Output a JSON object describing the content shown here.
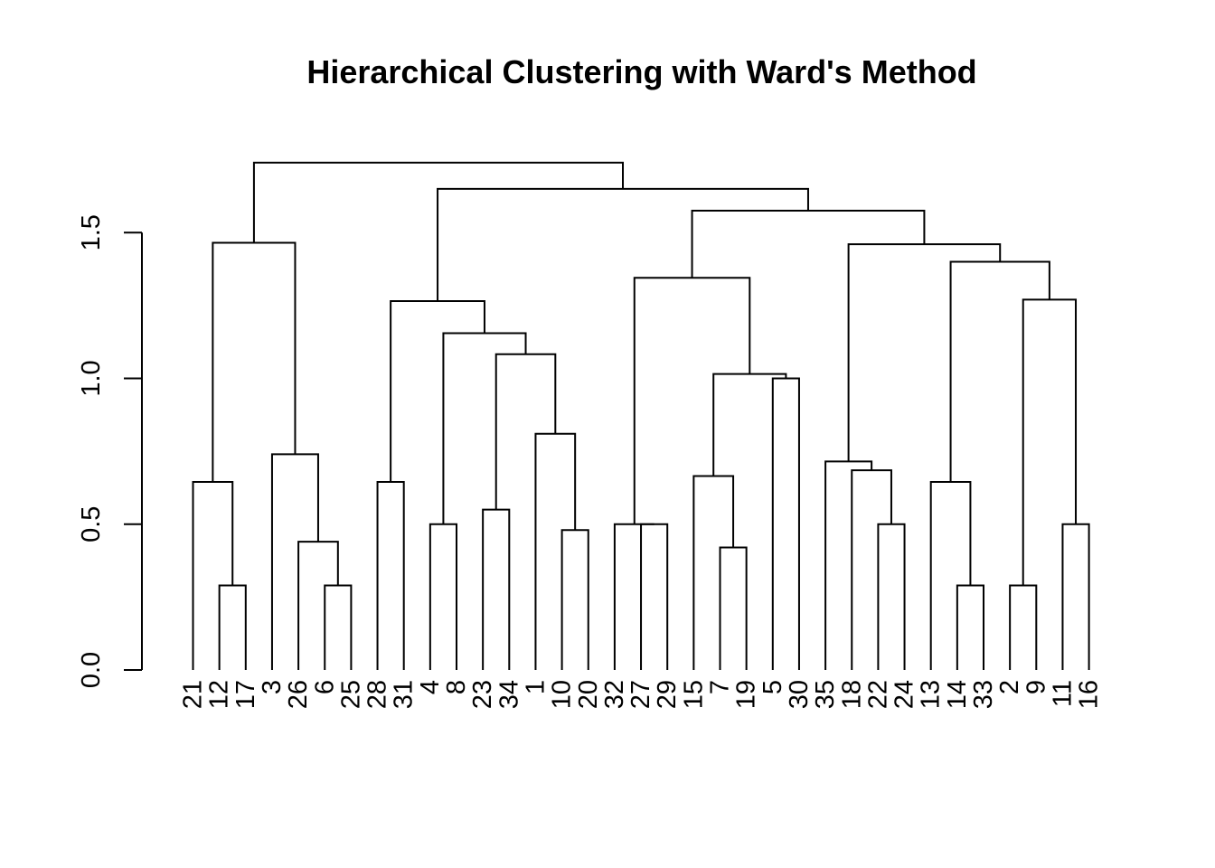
{
  "chart_data": {
    "type": "dendrogram",
    "title": "Hierarchical Clustering with Ward's Method",
    "xlabel": "",
    "ylabel": "",
    "ylim": [
      0,
      1.75
    ],
    "yticks": [
      "0.0",
      "0.5",
      "1.0",
      "1.5"
    ],
    "ytick_values": [
      0.0,
      0.5,
      1.0,
      1.5
    ],
    "leaves": [
      "21",
      "12",
      "17",
      "3",
      "26",
      "6",
      "25",
      "28",
      "31",
      "4",
      "8",
      "23",
      "34",
      "1",
      "10",
      "20",
      "32",
      "27",
      "29",
      "15",
      "7",
      "19",
      "5",
      "30",
      "35",
      "18",
      "22",
      "24",
      "13",
      "14",
      "33",
      "2",
      "9",
      "11",
      "16"
    ],
    "merges": [
      {
        "id": "m1",
        "left": "12",
        "right": "17",
        "height": 0.29
      },
      {
        "id": "m2",
        "left": "21",
        "right": "m1",
        "height": 0.645
      },
      {
        "id": "m3",
        "left": "6",
        "right": "25",
        "height": 0.29
      },
      {
        "id": "m4",
        "left": "26",
        "right": "m3",
        "height": 0.44
      },
      {
        "id": "m5",
        "left": "3",
        "right": "m4",
        "height": 0.74
      },
      {
        "id": "m6",
        "left": "m2",
        "right": "m5",
        "height": 1.465
      },
      {
        "id": "m7",
        "left": "28",
        "right": "31",
        "height": 0.645
      },
      {
        "id": "m8",
        "left": "4",
        "right": "8",
        "height": 0.5
      },
      {
        "id": "m9",
        "left": "23",
        "right": "34",
        "height": 0.55
      },
      {
        "id": "m10",
        "left": "10",
        "right": "20",
        "height": 0.48
      },
      {
        "id": "m11",
        "left": "1",
        "right": "m10",
        "height": 0.81
      },
      {
        "id": "m12",
        "left": "m9",
        "right": "m11",
        "height": 1.083
      },
      {
        "id": "m13",
        "left": "m8",
        "right": "m12",
        "height": 1.155
      },
      {
        "id": "m14",
        "left": "m7",
        "right": "m13",
        "height": 1.265
      },
      {
        "id": "m15",
        "left": "27",
        "right": "29",
        "height": 0.5
      },
      {
        "id": "m16",
        "left": "32",
        "right": "m15",
        "height": 0.5
      },
      {
        "id": "m17",
        "left": "7",
        "right": "19",
        "height": 0.42
      },
      {
        "id": "m18",
        "left": "15",
        "right": "m17",
        "height": 0.665
      },
      {
        "id": "m19",
        "left": "5",
        "right": "30",
        "height": 1.0
      },
      {
        "id": "m20",
        "left": "m18",
        "right": "m19",
        "height": 1.015
      },
      {
        "id": "m21",
        "left": "m16",
        "right": "m20",
        "height": 1.345
      },
      {
        "id": "m22",
        "left": "22",
        "right": "24",
        "height": 0.5
      },
      {
        "id": "m23",
        "left": "18",
        "right": "m22",
        "height": 0.685
      },
      {
        "id": "m24",
        "left": "35",
        "right": "m23",
        "height": 0.715
      },
      {
        "id": "m25",
        "left": "14",
        "right": "33",
        "height": 0.29
      },
      {
        "id": "m26",
        "left": "13",
        "right": "m25",
        "height": 0.645
      },
      {
        "id": "m27",
        "left": "2",
        "right": "9",
        "height": 0.29
      },
      {
        "id": "m28",
        "left": "11",
        "right": "16",
        "height": 0.5
      },
      {
        "id": "m29",
        "left": "m27",
        "right": "m28",
        "height": 1.27
      },
      {
        "id": "m30",
        "left": "m26",
        "right": "m29",
        "height": 1.4
      },
      {
        "id": "m31",
        "left": "m24",
        "right": "m30",
        "height": 1.46
      },
      {
        "id": "m32",
        "left": "m21",
        "right": "m31",
        "height": 1.575
      },
      {
        "id": "m33",
        "left": "m14",
        "right": "m32",
        "height": 1.65
      },
      {
        "id": "m34",
        "left": "m6",
        "right": "m33",
        "height": 1.74
      }
    ],
    "line_color": "#000000",
    "grid": false,
    "legend": "none"
  }
}
